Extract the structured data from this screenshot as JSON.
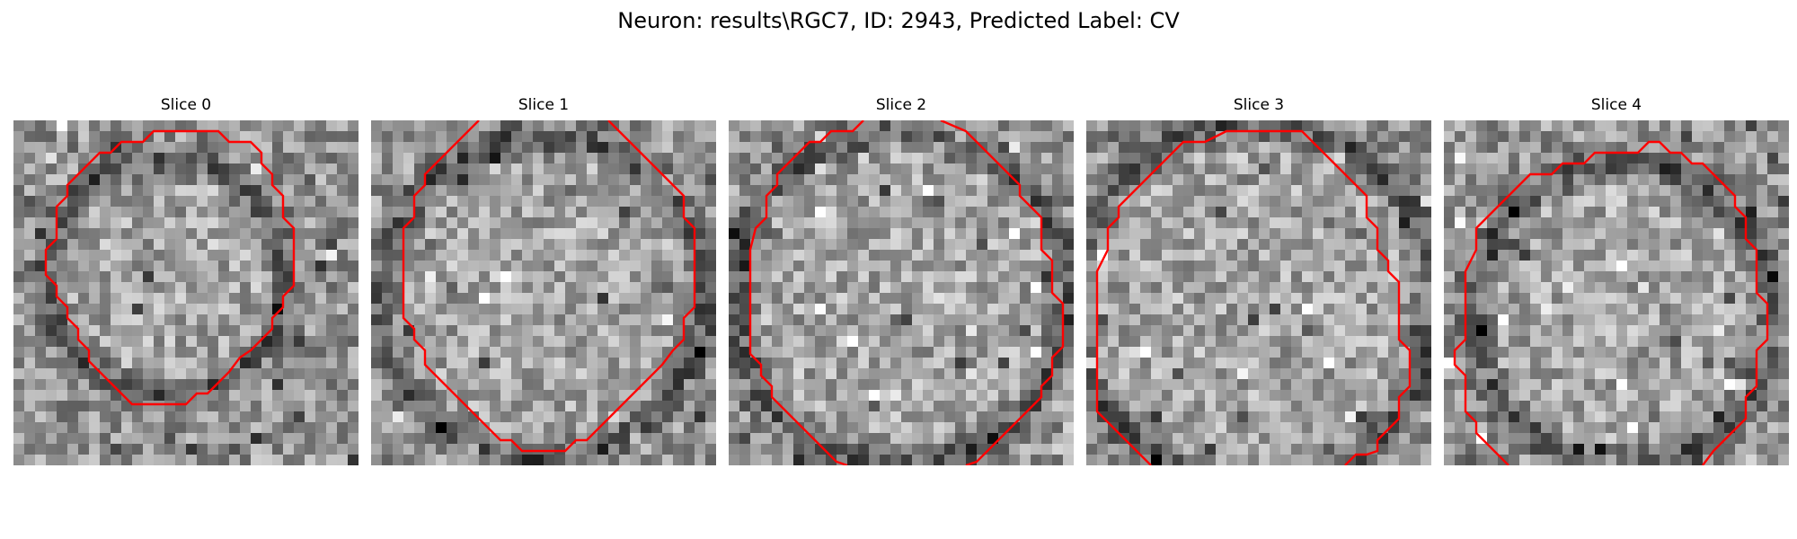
{
  "figure": {
    "title": "Neuron: results\\RGC7, ID: 2943, Predicted Label: CV"
  },
  "colors": {
    "contour": "#ff0000",
    "colormap": "gray"
  },
  "slices": [
    {
      "label": "Slice 0"
    },
    {
      "label": "Slice 1"
    },
    {
      "label": "Slice 2"
    },
    {
      "label": "Slice 3"
    },
    {
      "label": "Slice 4"
    }
  ]
}
